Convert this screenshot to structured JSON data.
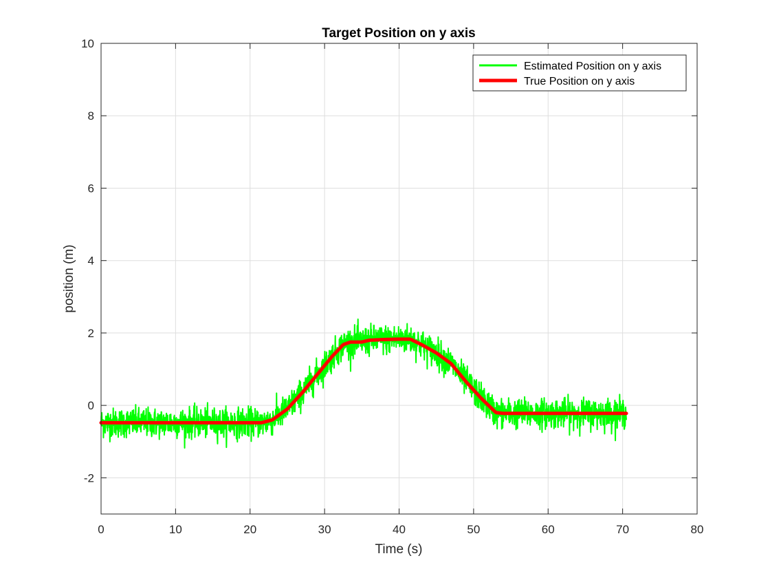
{
  "chart_data": {
    "type": "line",
    "title": "Target Position on y axis",
    "xlabel": "Time (s)",
    "ylabel": "position (m)",
    "xlim": [
      0,
      80
    ],
    "ylim": [
      -3,
      10
    ],
    "xticks": [
      0,
      10,
      20,
      30,
      40,
      50,
      60,
      70,
      80
    ],
    "yticks": [
      -2,
      0,
      2,
      4,
      6,
      8,
      10
    ],
    "xtick_labels": [
      "0",
      "10",
      "20",
      "30",
      "40",
      "50",
      "60",
      "70",
      "80"
    ],
    "ytick_labels": [
      "-2",
      "0",
      "2",
      "4",
      "6",
      "8",
      "10"
    ],
    "grid": true,
    "legend_position": "top-right",
    "series": [
      {
        "name": "Estimated Position on y axis",
        "color": "#00ff00",
        "noise_std": 0.2,
        "x_range": [
          0,
          70.5
        ],
        "follows": "True Position on y axis"
      },
      {
        "name": "True Position on y axis",
        "color": "#ff0000",
        "x": [
          0,
          21.5,
          23,
          25,
          27,
          29,
          31,
          32.5,
          33.5,
          35,
          36,
          38,
          40,
          41.5,
          43,
          45,
          47,
          49,
          51,
          53,
          54,
          70.5
        ],
        "y": [
          -0.48,
          -0.48,
          -0.4,
          -0.1,
          0.35,
          0.85,
          1.35,
          1.68,
          1.75,
          1.75,
          1.8,
          1.82,
          1.83,
          1.83,
          1.68,
          1.45,
          1.15,
          0.65,
          0.2,
          -0.2,
          -0.22,
          -0.22
        ]
      }
    ]
  }
}
